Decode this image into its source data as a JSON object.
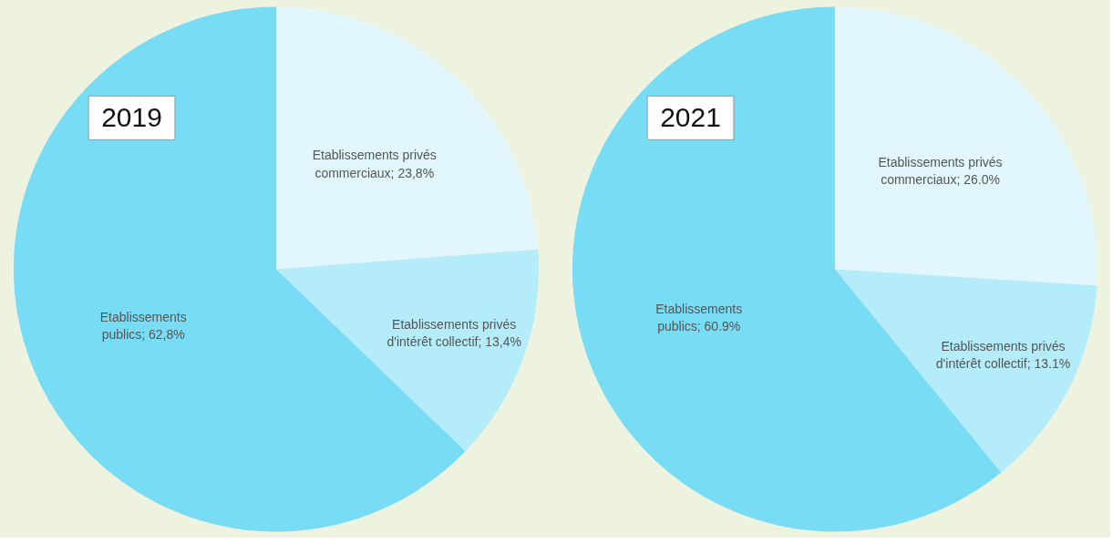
{
  "chart_data": [
    {
      "type": "pie",
      "title": "2019",
      "categories": [
        "Etablissements privés commerciaux",
        "Etablissements privés d'intérêt collectif",
        "Etablissements publics"
      ],
      "values": [
        23.8,
        13.4,
        62.8
      ],
      "colors": [
        "#e2f7fd",
        "#b4ecfa",
        "#78dcf5"
      ],
      "value_labels": [
        "23,8%",
        "13,4%",
        "62,8%"
      ]
    },
    {
      "type": "pie",
      "title": "2021",
      "categories": [
        "Etablissements privés commerciaux",
        "Etablissements privés d'intérêt collectif",
        "Etablissements publics"
      ],
      "values": [
        26.0,
        13.1,
        60.9
      ],
      "colors": [
        "#e2f7fd",
        "#b4ecfa",
        "#78dcf5"
      ],
      "value_labels": [
        "26.0%",
        "13.1%",
        "60.9%"
      ]
    }
  ]
}
